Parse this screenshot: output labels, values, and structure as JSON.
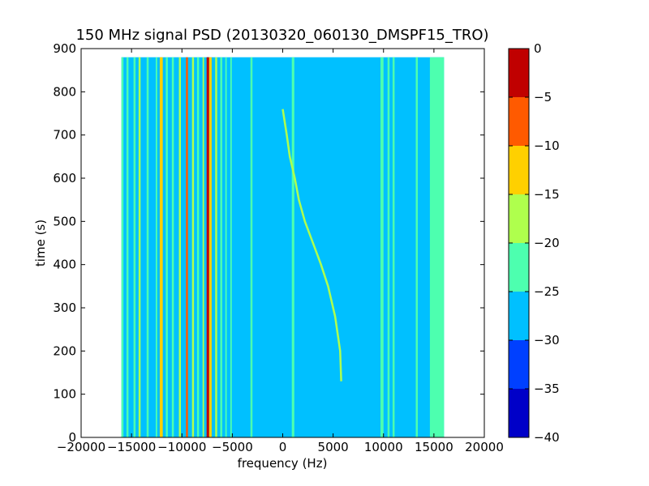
{
  "chart_data": {
    "type": "heatmap",
    "title": "150 MHz signal PSD (20130320_060130_DMSPF15_TRO)",
    "xlabel": "frequency (Hz)",
    "ylabel": "time (s)",
    "xlim": [
      -20000,
      20000
    ],
    "ylim": [
      0,
      900
    ],
    "x_ticks": [
      -20000,
      -15000,
      -10000,
      -5000,
      0,
      5000,
      10000,
      15000,
      20000
    ],
    "x_tick_labels": [
      "−20000",
      "−15000",
      "−10000",
      "−5000",
      "0",
      "5000",
      "10000",
      "15000",
      "20000"
    ],
    "y_ticks": [
      0,
      100,
      200,
      300,
      400,
      500,
      600,
      700,
      800,
      900
    ],
    "y_tick_labels": [
      "0",
      "100",
      "200",
      "300",
      "400",
      "500",
      "600",
      "700",
      "800",
      "900"
    ],
    "data_extent": {
      "freq": [
        -16000,
        16000
      ],
      "time": [
        0,
        880
      ]
    },
    "background_level": -27.5,
    "colorbar": {
      "min": -40,
      "max": 0,
      "ticks": [
        0,
        -5,
        -10,
        -15,
        -20,
        -25,
        -30,
        -35,
        -40
      ],
      "tick_labels": [
        "0",
        "−5",
        "−10",
        "−15",
        "−20",
        "−25",
        "−30",
        "−35",
        "−40"
      ],
      "levels": [
        {
          "from": -40,
          "to": -35,
          "color": "#0000c8"
        },
        {
          "from": -35,
          "to": -30,
          "color": "#0040ff"
        },
        {
          "from": -30,
          "to": -25,
          "color": "#00c0ff"
        },
        {
          "from": -25,
          "to": -20,
          "color": "#4dffaf"
        },
        {
          "from": -20,
          "to": -15,
          "color": "#afff4d"
        },
        {
          "from": -15,
          "to": -10,
          "color": "#ffd000"
        },
        {
          "from": -10,
          "to": -5,
          "color": "#ff5a00"
        },
        {
          "from": -5,
          "to": 0,
          "color": "#c00000"
        }
      ]
    },
    "stationary_lines": [
      {
        "from": -16000,
        "to": -15800,
        "level": -22
      },
      {
        "from": -15500,
        "to": -15300,
        "level": -22
      },
      {
        "from": -14800,
        "to": -14600,
        "level": -22
      },
      {
        "from": -14300,
        "to": -14100,
        "level": -17
      },
      {
        "from": -13500,
        "to": -13300,
        "level": -22
      },
      {
        "from": -12600,
        "to": -12450,
        "level": -22
      },
      {
        "from": -12200,
        "to": -11900,
        "level": -12
      },
      {
        "from": -11600,
        "to": -11400,
        "level": -22
      },
      {
        "from": -11000,
        "to": -10800,
        "level": -22
      },
      {
        "from": -10300,
        "to": -10100,
        "level": -17
      },
      {
        "from": -9600,
        "to": -9400,
        "level": -7
      },
      {
        "from": -9000,
        "to": -8800,
        "level": -17
      },
      {
        "from": -8500,
        "to": -8300,
        "level": -22
      },
      {
        "from": -7950,
        "to": -7800,
        "level": -17
      },
      {
        "from": -7550,
        "to": -7300,
        "level": -2
      },
      {
        "from": -7300,
        "to": -7050,
        "level": -12
      },
      {
        "from": -6700,
        "to": -6500,
        "level": -17
      },
      {
        "from": -6200,
        "to": -6000,
        "level": -22
      },
      {
        "from": -5700,
        "to": -5550,
        "level": -22
      },
      {
        "from": -5200,
        "to": -5050,
        "level": -22
      },
      {
        "from": -3200,
        "to": -3000,
        "level": -22
      },
      {
        "from": 900,
        "to": 1150,
        "level": -22
      },
      {
        "from": 9700,
        "to": 10000,
        "level": -22
      },
      {
        "from": 10400,
        "to": 10600,
        "level": -22
      },
      {
        "from": 10900,
        "to": 11100,
        "level": -22
      },
      {
        "from": 13200,
        "to": 13400,
        "level": -22
      },
      {
        "from": 14600,
        "to": 16000,
        "level": -22
      }
    ],
    "doppler_trace": {
      "level": -17,
      "points": [
        [
          5800,
          130
        ],
        [
          5700,
          200
        ],
        [
          5200,
          280
        ],
        [
          4500,
          350
        ],
        [
          3800,
          400
        ],
        [
          3000,
          450
        ],
        [
          2200,
          500
        ],
        [
          1600,
          550
        ],
        [
          1200,
          600
        ],
        [
          700,
          650
        ],
        [
          400,
          700
        ],
        [
          0,
          760
        ]
      ]
    }
  }
}
